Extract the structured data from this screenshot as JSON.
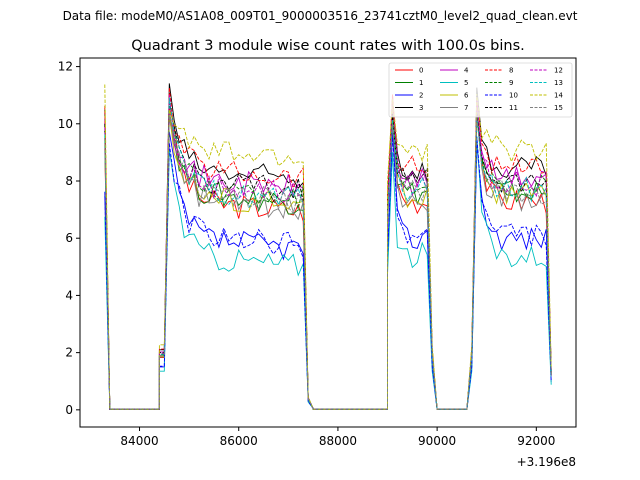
{
  "header": {
    "data_file": "Data file: modeM0/AS1A08_009T01_9000003516_23741cztM0_level2_quad_clean.evt"
  },
  "chart_data": {
    "type": "line",
    "title": "Quadrant 3 module wise count rates with 100.0s bins.",
    "xlabel": "",
    "ylabel": "",
    "offset_text": "+3.196e8",
    "xlim": [
      82800,
      92800
    ],
    "ylim": [
      -0.6,
      12.3
    ],
    "xticks": [
      84000,
      86000,
      88000,
      90000,
      92000
    ],
    "xtick_labels": [
      "84000",
      "86000",
      "88000",
      "90000",
      "92000"
    ],
    "yticks": [
      0,
      2,
      4,
      6,
      8,
      10,
      12
    ],
    "ytick_labels": [
      "0",
      "2",
      "4",
      "6",
      "8",
      "10",
      "12"
    ],
    "grid": false,
    "legend_position": "upper-right",
    "series": [
      {
        "name": "0",
        "color": "#ff0000",
        "dash": "solid",
        "level": 7.3,
        "peak": 10.8
      },
      {
        "name": "1",
        "color": "#008000",
        "dash": "solid",
        "level": 7.6,
        "peak": 10.5
      },
      {
        "name": "2",
        "color": "#0000ff",
        "dash": "solid",
        "level": 6.0,
        "peak": 9.6
      },
      {
        "name": "3",
        "color": "#000000",
        "dash": "solid",
        "level": 8.4,
        "peak": 11.1
      },
      {
        "name": "4",
        "color": "#bf00bf",
        "dash": "solid",
        "level": 8.1,
        "peak": 10.6
      },
      {
        "name": "5",
        "color": "#00bfbf",
        "dash": "solid",
        "level": 5.4,
        "peak": 9.3
      },
      {
        "name": "6",
        "color": "#bfbf00",
        "dash": "solid",
        "level": 7.5,
        "peak": 10.4
      },
      {
        "name": "7",
        "color": "#808080",
        "dash": "solid",
        "level": 7.4,
        "peak": 10.3
      },
      {
        "name": "8",
        "color": "#ff0000",
        "dash": "dashed",
        "level": 8.5,
        "peak": 10.9
      },
      {
        "name": "9",
        "color": "#008000",
        "dash": "dashed",
        "level": 7.8,
        "peak": 10.6
      },
      {
        "name": "10",
        "color": "#0000ff",
        "dash": "dashed",
        "level": 6.1,
        "peak": 9.5
      },
      {
        "name": "11",
        "color": "#000000",
        "dash": "dashed",
        "level": 8.0,
        "peak": 10.7
      },
      {
        "name": "12",
        "color": "#bf00bf",
        "dash": "dashed",
        "level": 7.9,
        "peak": 10.8
      },
      {
        "name": "13",
        "color": "#00bfbf",
        "dash": "dashed",
        "level": 7.7,
        "peak": 10.5
      },
      {
        "name": "14",
        "color": "#bfbf00",
        "dash": "dashed",
        "level": 9.1,
        "peak": 10.8
      },
      {
        "name": "15",
        "color": "#808080",
        "dash": "dashed",
        "level": 7.6,
        "peak": 10.4
      }
    ],
    "segments": [
      {
        "start": 83300,
        "end": 83400,
        "type": "decay",
        "from": 10.0,
        "to": 0.05
      },
      {
        "start": 83400,
        "end": 84400,
        "type": "zero"
      },
      {
        "start": 84400,
        "end": 84500,
        "type": "rise",
        "to": 2.0
      },
      {
        "start": 84600,
        "end": 87300,
        "type": "orbit",
        "decay": 0.35
      },
      {
        "start": 87400,
        "end": 87500,
        "type": "decay",
        "from": 0.4,
        "to": 0.05
      },
      {
        "start": 87500,
        "end": 89000,
        "type": "zero"
      },
      {
        "start": 89000,
        "end": 89000,
        "type": "rise",
        "to": 7.0
      },
      {
        "start": 89100,
        "end": 89800,
        "type": "orbit",
        "decay": 0.0
      },
      {
        "start": 89900,
        "end": 89900,
        "type": "decay",
        "from": 2.0,
        "to": 2.0
      },
      {
        "start": 90000,
        "end": 90600,
        "type": "zero"
      },
      {
        "start": 90700,
        "end": 90700,
        "type": "rise",
        "to": 2.0
      },
      {
        "start": 90800,
        "end": 92200,
        "type": "orbit",
        "decay": 0.0
      },
      {
        "start": 92300,
        "end": 92300,
        "type": "decay",
        "from": 1.3,
        "to": 1.3
      }
    ]
  }
}
